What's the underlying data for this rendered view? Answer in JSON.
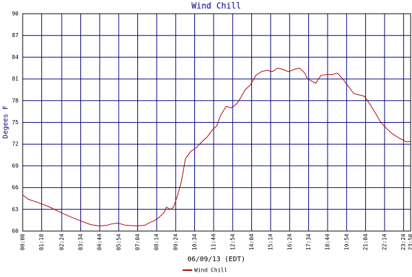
{
  "chart_data": {
    "type": "line",
    "title": "Wind Chill",
    "y_label": "Degees F",
    "x_label": "06/09/13 (EDT)",
    "x": [
      0,
      20,
      60,
      100,
      144,
      180,
      214,
      250,
      284,
      310,
      330,
      350,
      380,
      420,
      450,
      470,
      484,
      500,
      520,
      530,
      545,
      556,
      570,
      585,
      600,
      620,
      640,
      660,
      680,
      700,
      715,
      730,
      750,
      770,
      790,
      805,
      820,
      840,
      860,
      880,
      900,
      920,
      940,
      960,
      980,
      1000,
      1020,
      1040,
      1050,
      1060,
      1080,
      1100,
      1120,
      1140,
      1160,
      1180,
      1200,
      1220,
      1240,
      1260,
      1280,
      1300,
      1320,
      1340,
      1360,
      1380,
      1400,
      1415,
      1430
    ],
    "series": [
      {
        "name": "Wind Chill",
        "color": "#b00000",
        "values": [
          65.0,
          64.4,
          63.9,
          63.3,
          62.5,
          61.9,
          61.4,
          60.9,
          60.7,
          60.8,
          61.0,
          61.1,
          60.8,
          60.7,
          60.8,
          61.2,
          61.4,
          61.8,
          62.5,
          63.3,
          63.0,
          63.3,
          64.8,
          66.8,
          70.0,
          71.0,
          71.5,
          72.3,
          73.0,
          74.0,
          74.5,
          76.0,
          77.2,
          77.0,
          77.6,
          78.5,
          79.5,
          80.2,
          81.5,
          82.0,
          82.2,
          82.0,
          82.5,
          82.3,
          82.0,
          82.3,
          82.5,
          81.8,
          81.0,
          80.8,
          80.4,
          81.5,
          81.6,
          81.6,
          81.8,
          81.0,
          80.0,
          79.0,
          78.8,
          78.6,
          77.5,
          76.3,
          75.0,
          74.2,
          73.5,
          73.0,
          72.6,
          72.3,
          72.4
        ]
      }
    ],
    "xlim": [
      0,
      1430
    ],
    "xticks": [
      {
        "value": 0,
        "label": "00:00"
      },
      {
        "value": 70,
        "label": "01:10"
      },
      {
        "value": 144,
        "label": "02:24"
      },
      {
        "value": 214,
        "label": "03:34"
      },
      {
        "value": 284,
        "label": "04:44"
      },
      {
        "value": 354,
        "label": "05:54"
      },
      {
        "value": 424,
        "label": "07:04"
      },
      {
        "value": 494,
        "label": "08:14"
      },
      {
        "value": 564,
        "label": "09:24"
      },
      {
        "value": 634,
        "label": "10:34"
      },
      {
        "value": 704,
        "label": "11:44"
      },
      {
        "value": 774,
        "label": "12:54"
      },
      {
        "value": 844,
        "label": "14:04"
      },
      {
        "value": 914,
        "label": "15:14"
      },
      {
        "value": 984,
        "label": "16:24"
      },
      {
        "value": 1054,
        "label": "17:34"
      },
      {
        "value": 1124,
        "label": "18:44"
      },
      {
        "value": 1194,
        "label": "19:54"
      },
      {
        "value": 1264,
        "label": "21:04"
      },
      {
        "value": 1334,
        "label": "22:14"
      },
      {
        "value": 1404,
        "label": "23:24"
      },
      {
        "value": 1430,
        "label": "23:50"
      }
    ],
    "ylim": [
      60,
      90
    ],
    "yticks": [
      60,
      63,
      66,
      69,
      72,
      75,
      78,
      81,
      84,
      87,
      90
    ],
    "grid": true
  }
}
